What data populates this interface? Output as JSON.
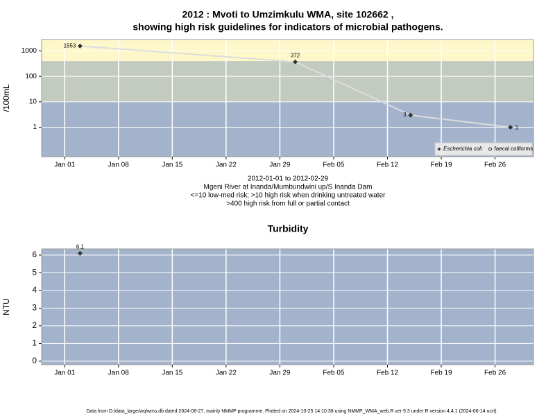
{
  "chart_data": [
    {
      "type": "line",
      "title": [
        "2012 : Mvoti to Umzimkulu WMA, site 102662 ,",
        "showing high risk guidelines for indicators of microbial pathogens."
      ],
      "y_label": "/100mL",
      "log_y": true,
      "x": [
        "2012-01-03",
        "2012-01-31",
        "2012-02-15",
        "2012-02-28"
      ],
      "series": [
        {
          "name": "Escherichia coli",
          "color": "#dddddd",
          "marker": "diamond",
          "marker_color": "#333333",
          "italic": true,
          "values": [
            1553,
            372,
            3,
            1
          ],
          "value_labels": [
            "1553",
            "372",
            "3",
            "1"
          ]
        },
        {
          "name": "faecal coliforms",
          "color": "#dddddd",
          "marker": "circle",
          "marker_color": "#333333",
          "italic": false,
          "values": [
            null,
            null,
            null,
            null
          ]
        }
      ],
      "bands": [
        {
          "to": 10,
          "color": "#a3b3cc"
        },
        {
          "from": 10,
          "to": 400,
          "color": "#c3cbc1"
        },
        {
          "from": 400,
          "color": "#fdf7ca"
        }
      ],
      "xlim": [
        "2011-12-29",
        "2012-03-02"
      ],
      "xticks": [
        {
          "value": "2012-01-01",
          "label": "Jan 01"
        },
        {
          "value": "2012-01-08",
          "label": "Jan 08"
        },
        {
          "value": "2012-01-15",
          "label": "Jan 15"
        },
        {
          "value": "2012-01-22",
          "label": "Jan 22"
        },
        {
          "value": "2012-01-29",
          "label": "Jan 29"
        },
        {
          "value": "2012-02-05",
          "label": "Feb 05"
        },
        {
          "value": "2012-02-12",
          "label": "Feb 12"
        },
        {
          "value": "2012-02-19",
          "label": "Feb 19"
        },
        {
          "value": "2012-02-26",
          "label": "Feb 26"
        }
      ],
      "ylim": [
        0.07,
        2800
      ],
      "yticks": [
        1,
        10,
        100,
        1000
      ],
      "grid": true,
      "legend": "bottom right",
      "notes": [
        "2012-01-01 to 2012-02-29",
        "Mgeni River at Inanda/Mumbundwini up/S Inanda Dam",
        "<=10 low-med risk; >10 high risk when drinking untreated water",
        ">400 high risk from full or partial contact"
      ]
    },
    {
      "type": "line",
      "title": [
        "Turbidity"
      ],
      "y_label": "NTU",
      "log_y": false,
      "background": "#a3b3cc",
      "x": [
        "2012-01-03"
      ],
      "series": [
        {
          "name": "Turbidity",
          "color": "#dddddd",
          "marker": "diamond",
          "marker_color": "#333333",
          "values": [
            6.1
          ]
        }
      ],
      "xlim": [
        "2011-12-29",
        "2012-03-02"
      ],
      "xticks": [
        {
          "value": "2012-01-01",
          "label": "Jan 01"
        },
        {
          "value": "2012-01-08",
          "label": "Jan 08"
        },
        {
          "value": "2012-01-15",
          "label": "Jan 15"
        },
        {
          "value": "2012-01-22",
          "label": "Jan 22"
        },
        {
          "value": "2012-01-29",
          "label": "Jan 29"
        },
        {
          "value": "2012-02-05",
          "label": "Feb 05"
        },
        {
          "value": "2012-02-12",
          "label": "Feb 12"
        },
        {
          "value": "2012-02-19",
          "label": "Feb 19"
        },
        {
          "value": "2012-02-26",
          "label": "Feb 26"
        }
      ],
      "ylim": [
        -0.2,
        6.35
      ],
      "yticks": [
        0,
        1,
        2,
        3,
        4,
        5,
        6
      ],
      "grid": true
    }
  ],
  "footer": "Data from D:/data_large/wq/wms.db dated 2024-08-27, mainly NMMP programme. Plotted on 2024-10-25 14:10:38 using NMMP_WMA_web.R ver 9.3 under R version 4.4.1 (2024-06-14 ucrt)"
}
